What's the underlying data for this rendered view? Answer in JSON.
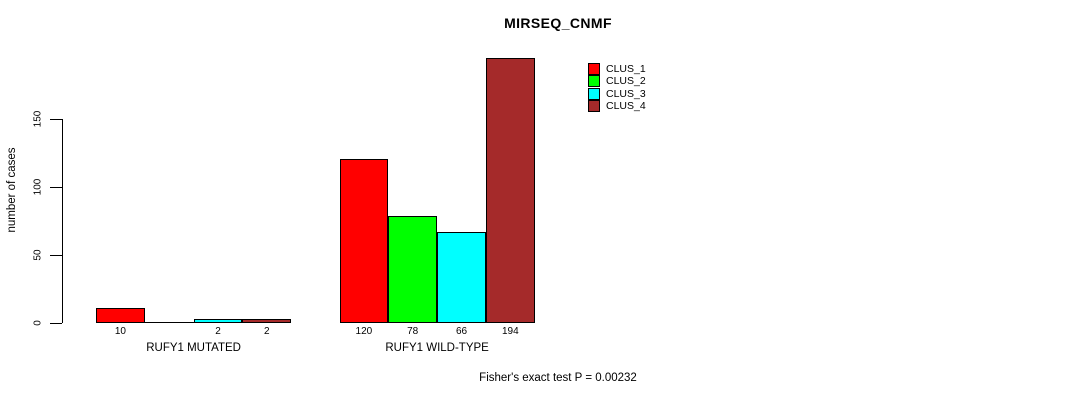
{
  "chart_data": {
    "type": "bar",
    "title": "MIRSEQ_CNMF",
    "ylabel": "number of cases",
    "xlabel": "",
    "categories": [
      "RUFY1 MUTATED",
      "RUFY1 WILD-TYPE"
    ],
    "series": [
      {
        "name": "CLUS_1",
        "color": "#ff0000",
        "values": [
          10,
          120
        ]
      },
      {
        "name": "CLUS_2",
        "color": "#00ff00",
        "values": [
          0,
          78
        ]
      },
      {
        "name": "CLUS_3",
        "color": "#00ffff",
        "values": [
          2,
          66
        ]
      },
      {
        "name": "CLUS_4",
        "color": "#a52a2a",
        "values": [
          2,
          194
        ]
      }
    ],
    "bar_labels": [
      [
        "10",
        "",
        "2",
        "2"
      ],
      [
        "120",
        "78",
        "66",
        "194"
      ]
    ],
    "yticks": [
      0,
      50,
      100,
      150
    ],
    "ylim": [
      0,
      197
    ],
    "grid": false,
    "legend_position": "top-right",
    "legend_entries": [
      "CLUS_1",
      "CLUS_2",
      "CLUS_3",
      "CLUS_4"
    ],
    "caption": "Fisher's exact test P = 0.00232"
  }
}
